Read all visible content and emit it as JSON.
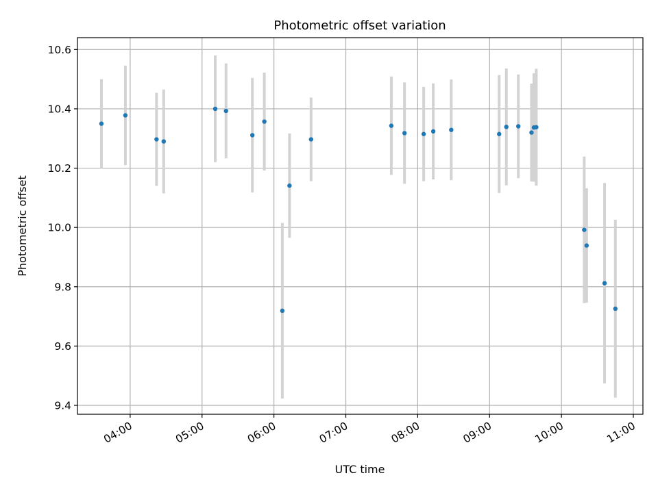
{
  "chart_data": {
    "type": "scatter",
    "title": "Photometric offset variation",
    "xlabel": "UTC time",
    "ylabel": "Photometric offset",
    "x_unit": "hours UTC",
    "xlim": [
      "03:16",
      "11:08"
    ],
    "ylim": [
      9.37,
      10.64
    ],
    "x_ticks": [
      "04:00",
      "05:00",
      "06:00",
      "07:00",
      "08:00",
      "09:00",
      "10:00",
      "11:00"
    ],
    "y_ticks": [
      "9.4",
      "9.6",
      "9.8",
      "10.0",
      "10.2",
      "10.4",
      "10.6"
    ],
    "grid": true,
    "legend": "none",
    "point_color": "#1f77b4",
    "errorbar_color": "#d3d3d3",
    "points": [
      {
        "x": "03:36",
        "y": 10.35,
        "err": 0.15
      },
      {
        "x": "03:56",
        "y": 10.378,
        "err": 0.168
      },
      {
        "x": "04:22",
        "y": 10.297,
        "err": 0.157
      },
      {
        "x": "04:28",
        "y": 10.29,
        "err": 0.175
      },
      {
        "x": "05:11",
        "y": 10.4,
        "err": 0.18
      },
      {
        "x": "05:20",
        "y": 10.393,
        "err": 0.16
      },
      {
        "x": "05:42",
        "y": 10.311,
        "err": 0.193
      },
      {
        "x": "05:52",
        "y": 10.357,
        "err": 0.165
      },
      {
        "x": "06:07",
        "y": 9.719,
        "err": 0.296
      },
      {
        "x": "06:13",
        "y": 10.141,
        "err": 0.176
      },
      {
        "x": "06:31",
        "y": 10.297,
        "err": 0.141
      },
      {
        "x": "07:38",
        "y": 10.343,
        "err": 0.166
      },
      {
        "x": "07:49",
        "y": 10.318,
        "err": 0.171
      },
      {
        "x": "08:05",
        "y": 10.315,
        "err": 0.159
      },
      {
        "x": "08:13",
        "y": 10.324,
        "err": 0.162
      },
      {
        "x": "08:28",
        "y": 10.329,
        "err": 0.17
      },
      {
        "x": "09:08",
        "y": 10.315,
        "err": 0.199
      },
      {
        "x": "09:14",
        "y": 10.339,
        "err": 0.197
      },
      {
        "x": "09:24",
        "y": 10.341,
        "err": 0.175
      },
      {
        "x": "09:35",
        "y": 10.32,
        "err": 0.165
      },
      {
        "x": "09:37",
        "y": 10.337,
        "err": 0.183
      },
      {
        "x": "09:39",
        "y": 10.338,
        "err": 0.197
      },
      {
        "x": "10:19",
        "y": 9.992,
        "err": 0.247
      },
      {
        "x": "10:21",
        "y": 9.939,
        "err": 0.193
      },
      {
        "x": "10:36",
        "y": 9.812,
        "err": 0.338
      },
      {
        "x": "10:45",
        "y": 9.726,
        "err": 0.3
      }
    ]
  }
}
